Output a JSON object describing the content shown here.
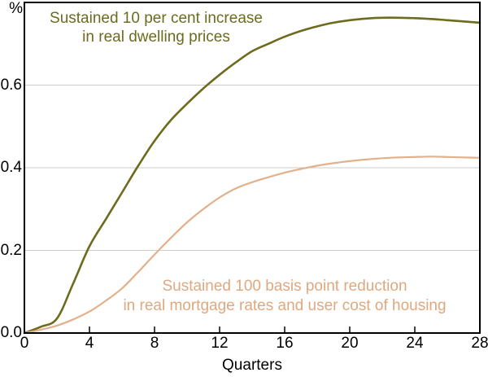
{
  "chart_data": {
    "type": "line",
    "title": "",
    "xlabel": "Quarters",
    "ylabel_unit": "%",
    "xlim": [
      0,
      28
    ],
    "ylim": [
      0,
      0.8
    ],
    "x_ticks": [
      0,
      4,
      8,
      12,
      16,
      20,
      24,
      28
    ],
    "y_ticks": [
      {
        "value": 0.0,
        "label": "0.0"
      },
      {
        "value": 0.2,
        "label": "0.2"
      },
      {
        "value": 0.4,
        "label": "0.4"
      },
      {
        "value": 0.6,
        "label": "0.6"
      }
    ],
    "grid": "horizontal",
    "legend_position": "inline-annotations",
    "x": [
      0,
      1,
      2,
      3,
      4,
      5,
      6,
      7,
      8,
      9,
      10,
      11,
      12,
      13,
      14,
      15,
      16,
      17,
      18,
      19,
      20,
      21,
      22,
      23,
      24,
      25,
      26,
      27,
      28
    ],
    "series": [
      {
        "name": "Sustained 10 per cent increase in real dwelling prices",
        "color": "#6c6b1e",
        "values": [
          0,
          0.015,
          0.035,
          0.12,
          0.21,
          0.275,
          0.34,
          0.405,
          0.465,
          0.515,
          0.555,
          0.592,
          0.625,
          0.655,
          0.682,
          0.7,
          0.717,
          0.731,
          0.742,
          0.751,
          0.757,
          0.761,
          0.763,
          0.763,
          0.762,
          0.76,
          0.757,
          0.754,
          0.751
        ]
      },
      {
        "name": "Sustained 100 basis point reduction in real mortgage rates and user cost of housing",
        "color": "#e2b18b",
        "values": [
          0,
          0.008,
          0.018,
          0.033,
          0.052,
          0.078,
          0.108,
          0.148,
          0.19,
          0.23,
          0.268,
          0.3,
          0.328,
          0.35,
          0.365,
          0.377,
          0.388,
          0.397,
          0.405,
          0.411,
          0.416,
          0.42,
          0.423,
          0.425,
          0.426,
          0.427,
          0.426,
          0.425,
          0.424
        ]
      }
    ],
    "annotations": [
      {
        "series": "dwelling-prices",
        "color": "#6c6b1e",
        "lines": [
          "Sustained 10 per cent increase",
          "in real dwelling prices"
        ]
      },
      {
        "series": "mortgage-rates",
        "color": "#dfa87e",
        "lines": [
          "Sustained 100 basis point reduction",
          "in real mortgage rates and user cost of housing"
        ]
      }
    ],
    "colors": {
      "axis": "#000000",
      "gridline": "#cbcbcb",
      "background": "#ffffff"
    }
  }
}
